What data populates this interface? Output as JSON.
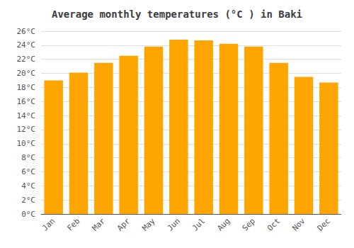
{
  "chart_data": {
    "type": "bar",
    "title": "Average monthly temperatures (°C ) in Baki",
    "categories": [
      "Jan",
      "Feb",
      "Mar",
      "Apr",
      "May",
      "Jun",
      "Jul",
      "Aug",
      "Sep",
      "Oct",
      "Nov",
      "Dec"
    ],
    "values": [
      19.0,
      20.1,
      21.5,
      22.5,
      23.8,
      24.8,
      24.7,
      24.2,
      23.8,
      21.5,
      19.5,
      18.7
    ],
    "color": "#FFA500",
    "ylim": [
      0,
      26
    ],
    "yticks": [
      {
        "value": 0,
        "label": "0°C"
      },
      {
        "value": 2,
        "label": "2°C"
      },
      {
        "value": 4,
        "label": "4°C"
      },
      {
        "value": 6,
        "label": "6°C"
      },
      {
        "value": 8,
        "label": "8°C"
      },
      {
        "value": 10,
        "label": "10°C"
      },
      {
        "value": 12,
        "label": "12°C"
      },
      {
        "value": 14,
        "label": "14°C"
      },
      {
        "value": 16,
        "label": "16°C"
      },
      {
        "value": 18,
        "label": "18°C"
      },
      {
        "value": 20,
        "label": "20°C"
      },
      {
        "value": 22,
        "label": "22°C"
      },
      {
        "value": 24,
        "label": "24°C"
      },
      {
        "value": 26,
        "label": "26°C"
      }
    ],
    "grid": true
  }
}
